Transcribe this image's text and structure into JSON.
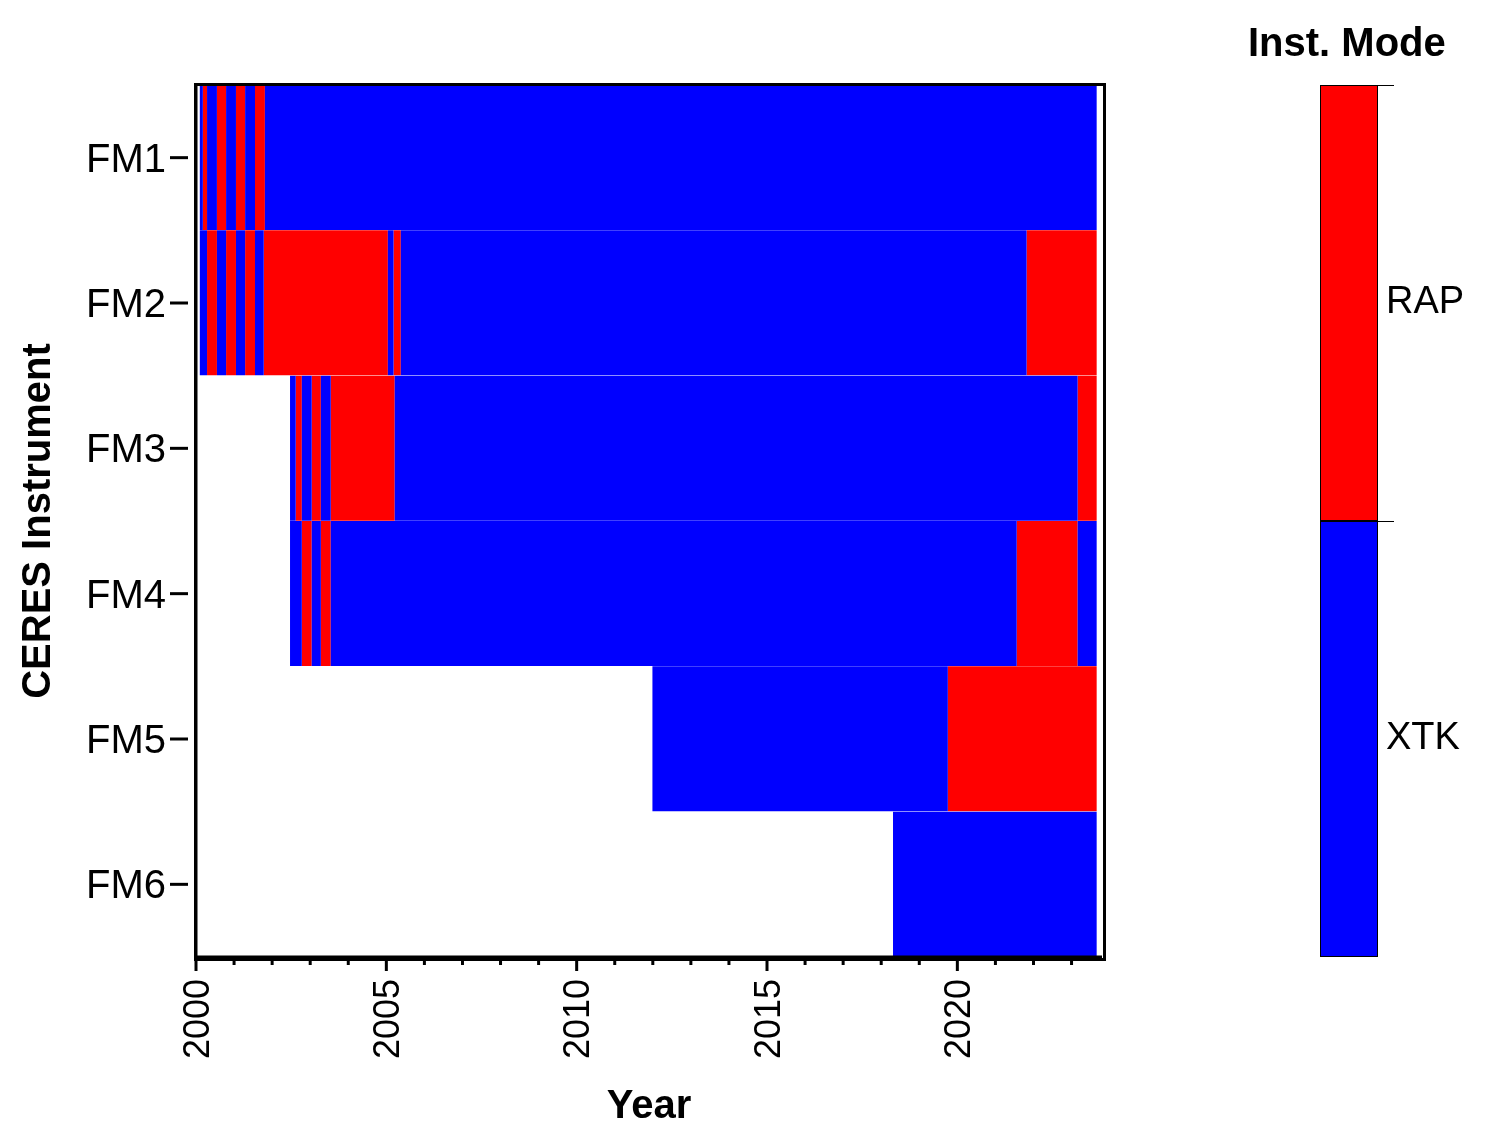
{
  "chart_data": {
    "type": "bar",
    "orientation": "horizontal",
    "xlabel": "Year",
    "ylabel": "CERES Instrument",
    "legend_title": "Inst. Mode",
    "legend": "right",
    "categories": [
      "FM1",
      "FM2",
      "FM3",
      "FM4",
      "FM5",
      "FM6"
    ],
    "xlim": [
      2000,
      2023.8
    ],
    "xticks": [
      2000,
      {
        "value": 2001,
        "label": null
      },
      {
        "value": 2002,
        "label": null
      },
      {
        "value": 2003,
        "label": null
      },
      {
        "value": 2004,
        "label": null
      },
      2005,
      {
        "value": 2006,
        "label": null
      },
      {
        "value": 2007,
        "label": null
      },
      {
        "value": 2008,
        "label": null
      },
      {
        "value": 2009,
        "label": null
      },
      2010,
      {
        "value": 2011,
        "label": null
      },
      {
        "value": 2012,
        "label": null
      },
      {
        "value": 2013,
        "label": null
      },
      {
        "value": 2014,
        "label": null
      },
      2015,
      {
        "value": 2016,
        "label": null
      },
      {
        "value": 2017,
        "label": null
      },
      {
        "value": 2018,
        "label": null
      },
      {
        "value": 2019,
        "label": null
      },
      2020,
      {
        "value": 2021,
        "label": null
      },
      {
        "value": 2022,
        "label": null
      },
      {
        "value": 2023,
        "label": null
      }
    ],
    "series": [
      {
        "name": "RAP",
        "color": "#ff0000",
        "base": [
          2000.18,
          2000.29,
          2002.62,
          2002.78,
          2019.75,
          null
        ],
        "values": [
          0.11,
          0.26,
          0.16,
          0.26,
          3.91,
          null
        ]
      },
      {
        "color": "#ff0000",
        "base": [
          2000.55,
          2000.79,
          2003.04,
          2003.28,
          null,
          null
        ],
        "values": [
          0.24,
          0.26,
          0.24,
          0.26,
          null,
          null
        ]
      },
      {
        "color": "#ff0000",
        "base": [
          2001.05,
          2001.29,
          2003.54,
          2021.56,
          null,
          null
        ],
        "values": [
          0.24,
          0.26,
          1.68,
          1.6,
          null,
          null
        ]
      },
      {
        "color": "#ff0000",
        "base": [
          2001.55,
          2001.78,
          2023.16,
          null,
          null,
          null
        ],
        "values": [
          0.26,
          3.26,
          0.5,
          null,
          null,
          null
        ]
      },
      {
        "color": "#ff0000",
        "base": [
          null,
          2005.19,
          null,
          null,
          null,
          null
        ],
        "values": [
          null,
          0.19,
          null,
          null,
          null,
          null
        ]
      },
      {
        "color": "#ff0000",
        "base": [
          null,
          2021.82,
          null,
          null,
          null,
          null
        ],
        "values": [
          null,
          1.84,
          null,
          null,
          null,
          null
        ]
      },
      {
        "name": "XTK",
        "color": "#0000ff",
        "base": [
          2000.1,
          2000.1,
          2002.47,
          2002.47,
          2011.99,
          2018.31
        ],
        "values": [
          0.08,
          0.19,
          0.15,
          0.31,
          7.76,
          5.35
        ]
      },
      {
        "color": "#0000ff",
        "base": [
          2000.29,
          2000.55,
          2002.78,
          2003.04,
          null,
          null
        ],
        "values": [
          0.26,
          0.24,
          0.26,
          0.24,
          null,
          null
        ]
      },
      {
        "color": "#0000ff",
        "base": [
          2000.79,
          2001.05,
          2003.28,
          2003.54,
          null,
          null
        ],
        "values": [
          0.26,
          0.24,
          0.26,
          18.02,
          null,
          null
        ]
      },
      {
        "color": "#0000ff",
        "base": [
          2001.29,
          2001.55,
          2005.22,
          2023.16,
          null,
          null
        ],
        "values": [
          0.26,
          0.23,
          17.94,
          0.5,
          null,
          null
        ]
      },
      {
        "color": "#0000ff",
        "base": [
          2001.81,
          2005.04,
          null,
          null,
          null,
          null
        ],
        "values": [
          21.85,
          0.15,
          null,
          null,
          null,
          null
        ]
      },
      {
        "color": "#0000ff",
        "base": [
          null,
          2005.38,
          null,
          null,
          null,
          null
        ],
        "values": [
          null,
          16.44,
          null,
          null,
          null,
          null
        ]
      }
    ]
  }
}
